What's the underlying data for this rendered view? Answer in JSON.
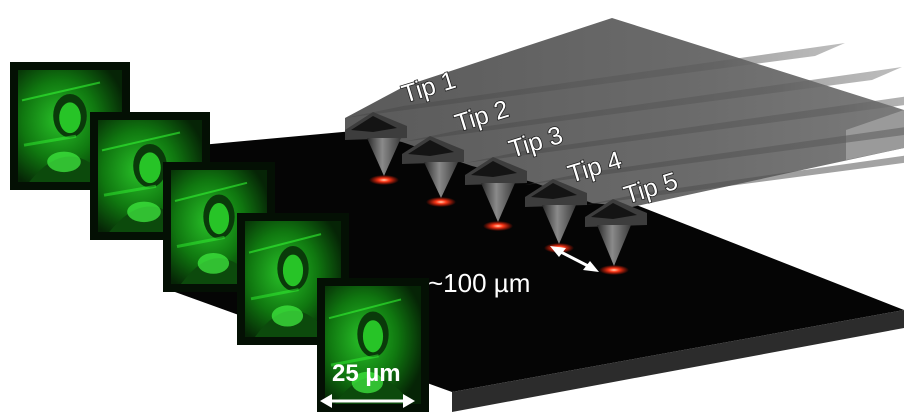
{
  "tips": [
    {
      "label": "Tip 1"
    },
    {
      "label": "Tip 2"
    },
    {
      "label": "Tip 3"
    },
    {
      "label": "Tip 4"
    },
    {
      "label": "Tip 5"
    }
  ],
  "tip_spacing_label": "~100 µm",
  "image_scale_label": "25 µm",
  "fluorescence_images": [
    {
      "name": "image-frame-1"
    },
    {
      "name": "image-frame-2"
    },
    {
      "name": "image-frame-3"
    },
    {
      "name": "image-frame-4"
    },
    {
      "name": "image-frame-5"
    }
  ],
  "colors": {
    "substrate": "#050505",
    "cantilever": "#5f5f5f",
    "fluorescence": "#1fd41f",
    "tip_glow": "#ff2a1a"
  }
}
